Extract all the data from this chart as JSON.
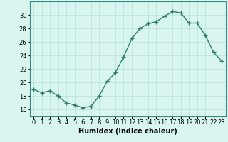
{
  "x": [
    0,
    1,
    2,
    3,
    4,
    5,
    6,
    7,
    8,
    9,
    10,
    11,
    12,
    13,
    14,
    15,
    16,
    17,
    18,
    19,
    20,
    21,
    22,
    23
  ],
  "y": [
    19.0,
    18.5,
    18.8,
    18.0,
    17.0,
    16.7,
    16.3,
    16.5,
    18.0,
    20.2,
    21.5,
    23.8,
    26.5,
    28.0,
    28.7,
    29.0,
    29.8,
    30.5,
    30.3,
    28.8,
    28.8,
    27.0,
    24.5,
    23.2
  ],
  "line_color": "#2e7d6e",
  "marker": "+",
  "marker_size": 4,
  "marker_linewidth": 1.0,
  "linewidth": 1.0,
  "bg_color": "#d8f5f0",
  "grid_color": "#b8e0da",
  "grid_linewidth": 0.5,
  "xlabel": "Humidex (Indice chaleur)",
  "ylim": [
    15,
    32
  ],
  "yticks": [
    16,
    18,
    20,
    22,
    24,
    26,
    28,
    30
  ],
  "xlim": [
    -0.5,
    23.5
  ],
  "label_fontsize": 7,
  "tick_fontsize": 6
}
